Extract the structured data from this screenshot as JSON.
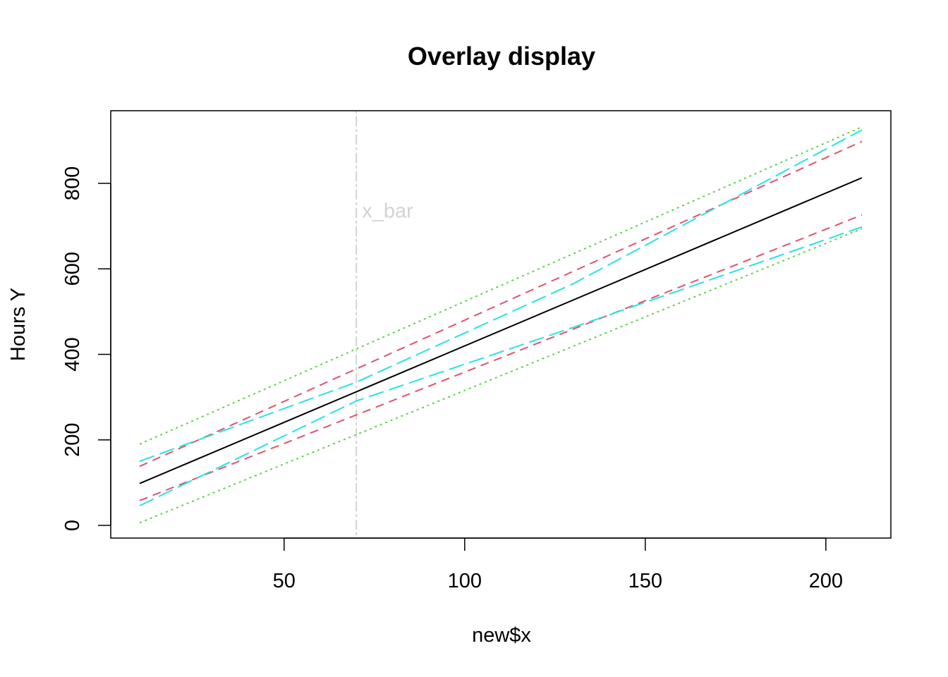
{
  "chart_data": {
    "type": "line",
    "title": "Overlay display",
    "xlabel": "new$x",
    "ylabel": "Hours Y",
    "xlim": [
      10,
      210
    ],
    "ylim": [
      0,
      930
    ],
    "x_ticks": [
      50,
      100,
      150,
      200
    ],
    "y_ticks": [
      0,
      200,
      400,
      600,
      800
    ],
    "grid": false,
    "x": [
      10,
      210
    ],
    "series": [
      {
        "role": "fit",
        "color": "#000000",
        "dash": "solid",
        "values": [
          98,
          813
        ]
      },
      {
        "role": "mean-band-upper",
        "color": "#DF536B",
        "dash": "dashed",
        "values": [
          138,
          898
        ]
      },
      {
        "role": "mean-band-lower",
        "color": "#DF536B",
        "dash": "dashed",
        "values": [
          58,
          726
        ]
      },
      {
        "role": "prediction-upper",
        "color": "#61D04F",
        "dash": "dotted",
        "values": [
          190,
          932
        ]
      },
      {
        "role": "prediction-lower",
        "color": "#61D04F",
        "dash": "dotted",
        "values": [
          6,
          694
        ]
      },
      {
        "role": "band-upper",
        "color": "#28E2E5",
        "dash": "longdash",
        "x": [
          10,
          70,
          130,
          210
        ],
        "values": [
          150,
          335,
          565,
          925
        ]
      },
      {
        "role": "band-lower",
        "color": "#28E2E5",
        "dash": "longdash",
        "x": [
          10,
          70,
          130,
          210
        ],
        "values": [
          46,
          291,
          463,
          698
        ]
      }
    ],
    "reference_line": {
      "x": 70,
      "label": "x_bar",
      "color": "#D3D3D3",
      "label_y": 720
    }
  }
}
